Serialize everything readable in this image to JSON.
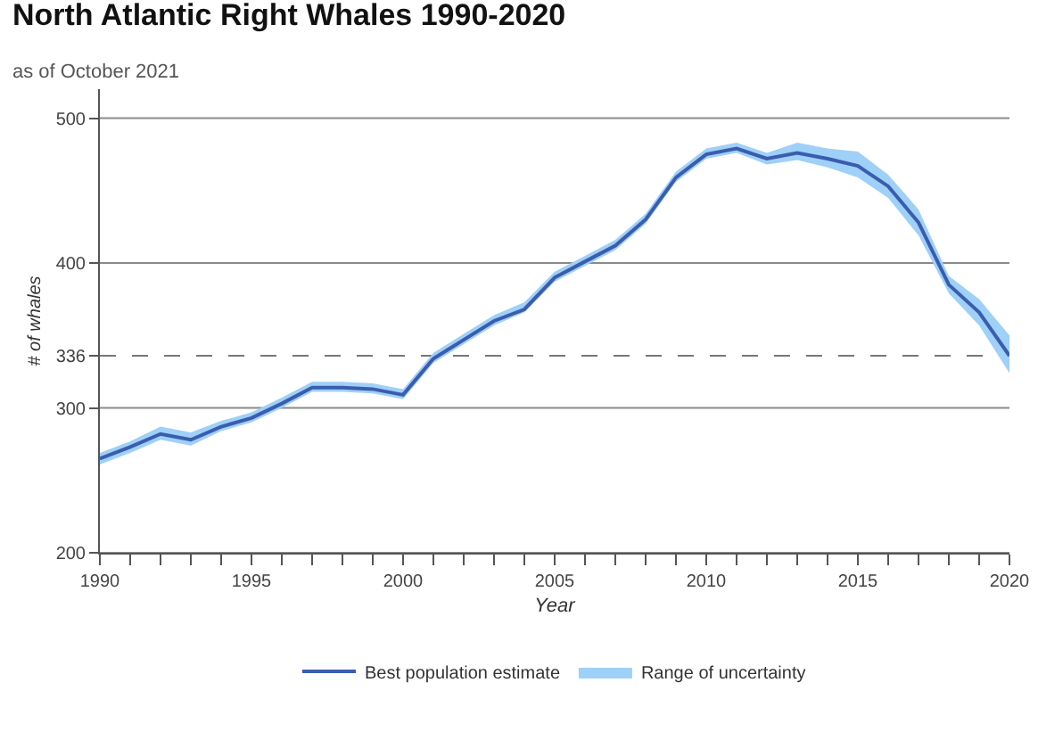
{
  "chart_data": {
    "type": "line",
    "title": "North Atlantic Right Whales 1990-2020",
    "subtitle": "as of October 2021",
    "xlabel": "Year",
    "ylabel": "# of whales",
    "x": [
      1990,
      1991,
      1992,
      1993,
      1994,
      1995,
      1996,
      1997,
      1998,
      1999,
      2000,
      2001,
      2002,
      2003,
      2004,
      2005,
      2006,
      2007,
      2008,
      2009,
      2010,
      2011,
      2012,
      2013,
      2014,
      2015,
      2016,
      2017,
      2018,
      2019,
      2020
    ],
    "series": [
      {
        "name": "Best population estimate",
        "color": "#3a5dae",
        "values": [
          265,
          273,
          282,
          278,
          287,
          293,
          303,
          314,
          314,
          313,
          309,
          334,
          347,
          360,
          368,
          390,
          401,
          412,
          430,
          459,
          475,
          479,
          472,
          476,
          472,
          467,
          453,
          428,
          385,
          366,
          336
        ],
        "lower": [
          261,
          269,
          278,
          274,
          284,
          290,
          300,
          311,
          311,
          310,
          306,
          331,
          344,
          357,
          366,
          387,
          398,
          409,
          427,
          456,
          472,
          476,
          468,
          471,
          466,
          459,
          445,
          419,
          379,
          357,
          324
        ],
        "upper": [
          269,
          277,
          287,
          283,
          291,
          297,
          307,
          318,
          318,
          317,
          313,
          338,
          351,
          364,
          373,
          394,
          405,
          416,
          434,
          463,
          479,
          483,
          476,
          483,
          479,
          477,
          461,
          437,
          391,
          375,
          350
        ]
      }
    ],
    "annotations": [
      "Range of uncertainty"
    ],
    "xlim": [
      1990,
      2020
    ],
    "xticks": [
      1990,
      {
        "value": 1991,
        "label": null
      },
      {
        "value": 1992,
        "label": null
      },
      {
        "value": 1993,
        "label": null
      },
      {
        "value": 1994,
        "label": null
      },
      1995,
      {
        "value": 1996,
        "label": null
      },
      {
        "value": 1997,
        "label": null
      },
      {
        "value": 1998,
        "label": null
      },
      {
        "value": 1999,
        "label": null
      },
      2000,
      {
        "value": 2001,
        "label": null
      },
      {
        "value": 2002,
        "label": null
      },
      {
        "value": 2003,
        "label": null
      },
      {
        "value": 2004,
        "label": null
      },
      2005,
      {
        "value": 2006,
        "label": null
      },
      {
        "value": 2007,
        "label": null
      },
      {
        "value": 2008,
        "label": null
      },
      {
        "value": 2009,
        "label": null
      },
      2010,
      {
        "value": 2011,
        "label": null
      },
      {
        "value": 2012,
        "label": null
      },
      {
        "value": 2013,
        "label": null
      },
      {
        "value": 2014,
        "label": null
      },
      2015,
      {
        "value": 2016,
        "label": null
      },
      {
        "value": 2017,
        "label": null
      },
      {
        "value": 2018,
        "label": null
      },
      {
        "value": 2019,
        "label": null
      },
      2020
    ],
    "ylim": [
      200,
      520
    ],
    "yticks": [
      200,
      300,
      336,
      400,
      500
    ],
    "ref_lines": [
      {
        "axis": "y",
        "value": 336,
        "color": "#777777",
        "line_style": "dashed"
      }
    ],
    "grid": "y",
    "legend": "bottom",
    "marker": "none",
    "line_style": "solid"
  }
}
